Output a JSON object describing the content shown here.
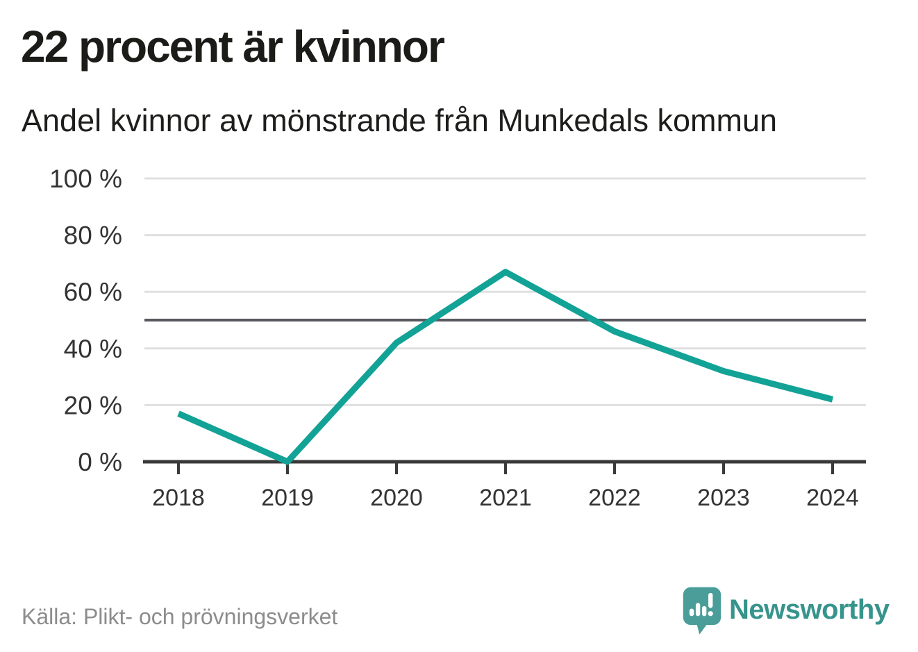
{
  "header": {
    "title": "22 procent är kvinnor",
    "subtitle": "Andel kvinnor av mönstrande från Munkedals kommun"
  },
  "footer": {
    "source": "Källa: Plikt- och prövningsverket",
    "brand": "Newsworthy"
  },
  "colors": {
    "line": "#12a296",
    "grid": "#e0e0e0",
    "reference_line": "#58585e",
    "axis": "#3a3a3a",
    "tick_label": "#333333",
    "title_text": "#1b1b18",
    "source_text": "#8c8c8c",
    "brand_teal": "#37948c",
    "logo_bubble": "#4a9d98"
  },
  "chart_data": {
    "type": "line",
    "title": "22 procent är kvinnor",
    "subtitle": "Andel kvinnor av mönstrande från Munkedals kommun",
    "categories": [
      "2018",
      "2019",
      "2020",
      "2021",
      "2022",
      "2023",
      "2024"
    ],
    "values": [
      17,
      0,
      42,
      67,
      46,
      32,
      22
    ],
    "ylim": [
      0,
      100
    ],
    "yticks": [
      0,
      20,
      40,
      60,
      80,
      100
    ],
    "ytick_suffix": " %",
    "xlabel": "",
    "ylabel": "",
    "reference_line": 50,
    "grid": true,
    "legend": "none"
  }
}
